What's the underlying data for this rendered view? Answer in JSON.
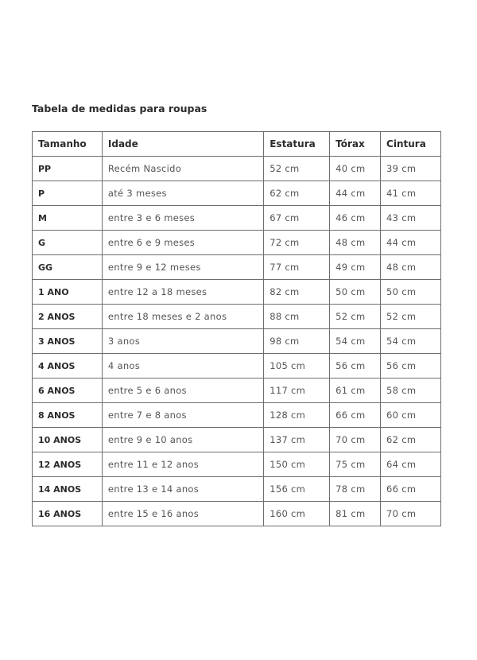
{
  "title": "Tabela de medidas para roupas",
  "table": {
    "headers": [
      "Tamanho",
      "Idade",
      "Estatura",
      "Tórax",
      "Cintura"
    ],
    "rows": [
      [
        "PP",
        "Recém Nascido",
        "52 cm",
        "40 cm",
        "39 cm"
      ],
      [
        "P",
        "até 3 meses",
        "62 cm",
        "44 cm",
        "41 cm"
      ],
      [
        "M",
        "entre 3 e 6 meses",
        "67 cm",
        "46 cm",
        "43 cm"
      ],
      [
        "G",
        "entre 6 e 9 meses",
        "72 cm",
        "48 cm",
        "44 cm"
      ],
      [
        "GG",
        "entre 9 e 12 meses",
        "77 cm",
        "49 cm",
        "48 cm"
      ],
      [
        "1 ANO",
        "entre 12 a 18 meses",
        "82 cm",
        "50 cm",
        "50 cm"
      ],
      [
        "2 ANOS",
        "entre 18 meses e 2 anos",
        "88 cm",
        "52 cm",
        "52 cm"
      ],
      [
        "3 ANOS",
        "3 anos",
        "98 cm",
        "54 cm",
        "54 cm"
      ],
      [
        "4 ANOS",
        "4 anos",
        "105 cm",
        "56 cm",
        "56 cm"
      ],
      [
        "6 ANOS",
        "entre 5 e 6 anos",
        "117 cm",
        "61 cm",
        "58 cm"
      ],
      [
        "8 ANOS",
        "entre 7 e 8 anos",
        "128 cm",
        "66 cm",
        "60 cm"
      ],
      [
        "10 ANOS",
        "entre 9 e 10 anos",
        "137 cm",
        "70 cm",
        "62 cm"
      ],
      [
        "12 ANOS",
        "entre 11 e 12 anos",
        "150 cm",
        "75 cm",
        "64 cm"
      ],
      [
        "14 ANOS",
        "entre 13 e 14 anos",
        "156 cm",
        "78 cm",
        "66 cm"
      ],
      [
        "16 ANOS",
        "entre 15 e 16 anos",
        "160 cm",
        "81 cm",
        "70 cm"
      ]
    ]
  }
}
